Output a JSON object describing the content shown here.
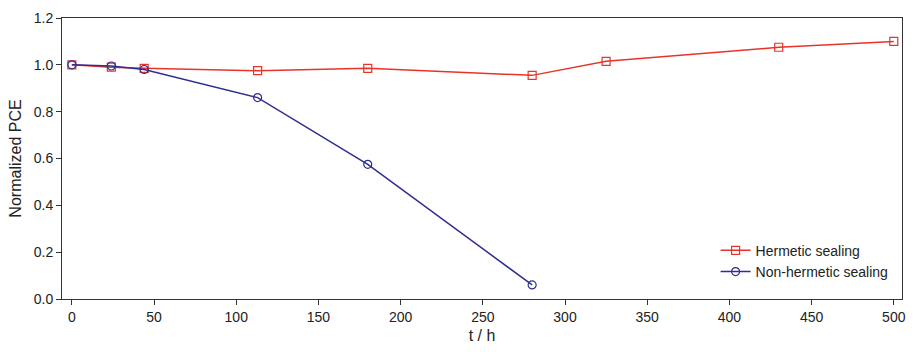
{
  "chart_data": {
    "type": "line",
    "x_label": "t / h",
    "y_label": "Normalized PCE",
    "xlim": [
      -6,
      505
    ],
    "xticks": [
      0,
      50,
      100,
      150,
      200,
      250,
      300,
      350,
      400,
      450,
      500
    ],
    "ylim": [
      0,
      1.2
    ],
    "yticks": [
      {
        "value": 0,
        "label": "0.0"
      },
      0.2,
      0.4,
      0.6,
      0.8,
      {
        "value": 1,
        "label": "1.0"
      },
      1.2
    ],
    "grid": false,
    "legend": "lower right",
    "series": [
      {
        "name": "Hermetic sealing",
        "color": "#e8332b",
        "marker": "open square",
        "line_style": "solid",
        "x": [
          0,
          24,
          44,
          113,
          180,
          280,
          325,
          430,
          500
        ],
        "values": [
          1.0,
          0.99,
          0.985,
          0.975,
          0.985,
          0.955,
          1.015,
          1.075,
          1.1
        ]
      },
      {
        "name": "Non-hermetic sealing",
        "color": "#2e2e8f",
        "marker": "open circle",
        "line_style": "solid",
        "x": [
          0,
          24,
          44,
          113,
          180,
          280
        ],
        "values": [
          1.0,
          0.995,
          0.98,
          0.86,
          0.575,
          0.06
        ]
      }
    ]
  }
}
